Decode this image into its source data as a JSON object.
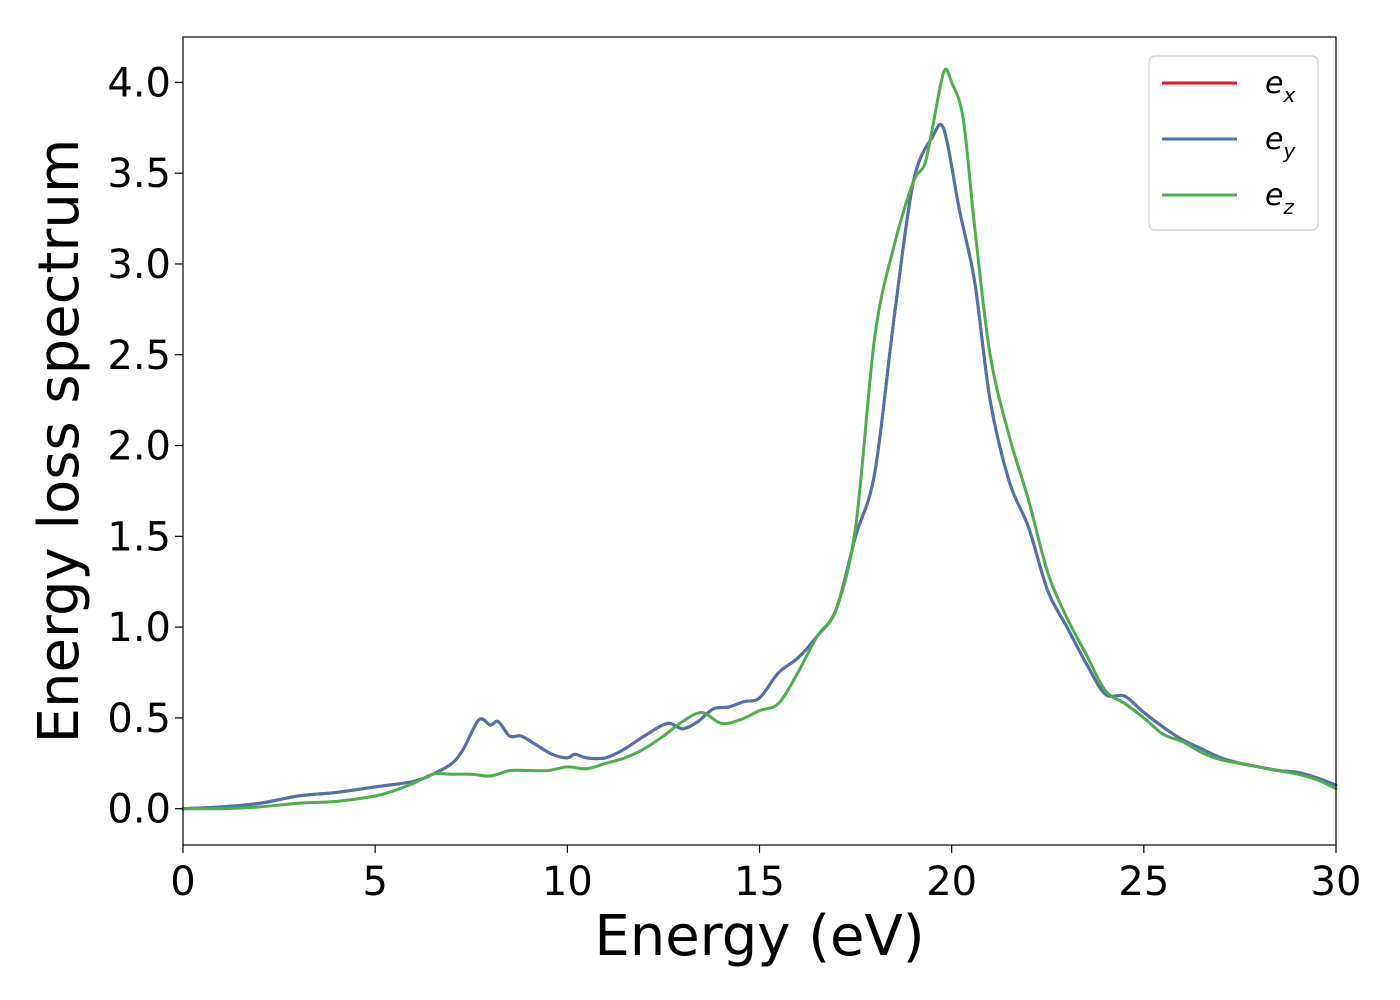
{
  "chart_data": {
    "type": "line",
    "title": "",
    "xlabel": "Energy (eV)",
    "ylabel": "Energy loss spectrum",
    "xlim": [
      0,
      30
    ],
    "ylim": [
      -0.2,
      4.25
    ],
    "xticks": [
      0,
      5,
      10,
      15,
      20,
      25,
      30
    ],
    "xtick_labels": [
      "0",
      "5",
      "10",
      "15",
      "20",
      "25",
      "30"
    ],
    "yticks": [
      0.0,
      0.5,
      1.0,
      1.5,
      2.0,
      2.5,
      3.0,
      3.5,
      4.0
    ],
    "ytick_labels": [
      "0.0",
      "0.5",
      "1.0",
      "1.5",
      "2.0",
      "2.5",
      "3.0",
      "3.5",
      "4.0"
    ],
    "grid": false,
    "legend_position": "top-right",
    "series": [
      {
        "name": "e_x",
        "label_main": "e",
        "label_sub": "x",
        "color": "#e41a1c",
        "x": [
          0,
          1,
          2,
          3,
          4,
          5,
          6,
          6.5,
          7,
          7.3,
          7.7,
          8.0,
          8.2,
          8.5,
          8.8,
          9.2,
          9.6,
          10.0,
          10.2,
          10.5,
          11.0,
          11.5,
          12.0,
          12.6,
          13.0,
          13.4,
          13.8,
          14.2,
          14.6,
          15.0,
          15.5,
          16.0,
          16.5,
          17.0,
          17.5,
          18.0,
          18.5,
          19.0,
          19.5,
          19.8,
          20.2,
          20.6,
          21.0,
          21.5,
          22.0,
          22.5,
          23.0,
          23.5,
          24.0,
          24.5,
          25.0,
          25.5,
          26.0,
          26.5,
          27.0,
          27.5,
          28.0,
          28.5,
          29.0,
          29.5,
          30.0
        ],
        "y": [
          0.0,
          0.01,
          0.03,
          0.07,
          0.09,
          0.12,
          0.15,
          0.19,
          0.25,
          0.33,
          0.49,
          0.46,
          0.48,
          0.4,
          0.4,
          0.35,
          0.3,
          0.28,
          0.3,
          0.28,
          0.28,
          0.33,
          0.4,
          0.47,
          0.44,
          0.48,
          0.55,
          0.56,
          0.59,
          0.61,
          0.75,
          0.83,
          0.95,
          1.1,
          1.5,
          1.85,
          2.7,
          3.45,
          3.7,
          3.74,
          3.3,
          2.9,
          2.25,
          1.8,
          1.55,
          1.2,
          1.0,
          0.8,
          0.63,
          0.62,
          0.53,
          0.45,
          0.38,
          0.33,
          0.28,
          0.25,
          0.23,
          0.21,
          0.2,
          0.17,
          0.13
        ]
      },
      {
        "name": "e_y",
        "label_main": "e",
        "label_sub": "y",
        "color": "#4c72b0",
        "x": [
          0,
          1,
          2,
          3,
          4,
          5,
          6,
          6.5,
          7,
          7.3,
          7.7,
          8.0,
          8.2,
          8.5,
          8.8,
          9.2,
          9.6,
          10.0,
          10.2,
          10.5,
          11.0,
          11.5,
          12.0,
          12.6,
          13.0,
          13.4,
          13.8,
          14.2,
          14.6,
          15.0,
          15.5,
          16.0,
          16.5,
          17.0,
          17.5,
          18.0,
          18.5,
          19.0,
          19.5,
          19.8,
          20.2,
          20.6,
          21.0,
          21.5,
          22.0,
          22.5,
          23.0,
          23.5,
          24.0,
          24.5,
          25.0,
          25.5,
          26.0,
          26.5,
          27.0,
          27.5,
          28.0,
          28.5,
          29.0,
          29.5,
          30.0
        ],
        "y": [
          0.0,
          0.01,
          0.03,
          0.07,
          0.09,
          0.12,
          0.15,
          0.19,
          0.25,
          0.33,
          0.49,
          0.46,
          0.48,
          0.4,
          0.4,
          0.35,
          0.3,
          0.28,
          0.3,
          0.28,
          0.28,
          0.33,
          0.4,
          0.47,
          0.44,
          0.48,
          0.55,
          0.56,
          0.59,
          0.61,
          0.75,
          0.83,
          0.95,
          1.1,
          1.5,
          1.85,
          2.7,
          3.45,
          3.7,
          3.74,
          3.3,
          2.9,
          2.25,
          1.8,
          1.55,
          1.2,
          1.0,
          0.8,
          0.63,
          0.62,
          0.53,
          0.45,
          0.38,
          0.33,
          0.28,
          0.25,
          0.23,
          0.21,
          0.2,
          0.17,
          0.13
        ]
      },
      {
        "name": "e_z",
        "label_main": "e",
        "label_sub": "z",
        "color": "#4daf4a",
        "x": [
          0,
          1,
          2,
          3,
          4,
          5,
          5.5,
          6,
          6.5,
          7,
          7.5,
          8,
          8.5,
          9,
          9.5,
          10,
          10.5,
          11,
          11.5,
          12,
          12.5,
          13,
          13.5,
          14,
          14.5,
          15,
          15.5,
          16,
          16.5,
          17,
          17.5,
          18,
          18.5,
          19,
          19.3,
          19.5,
          19.8,
          20.0,
          20.3,
          20.6,
          21.0,
          21.5,
          22.0,
          22.5,
          23.0,
          23.5,
          24.0,
          24.5,
          25.0,
          25.5,
          26.0,
          26.5,
          27.0,
          27.5,
          28.0,
          28.5,
          29.0,
          29.5,
          30.0
        ],
        "y": [
          0.0,
          0.0,
          0.01,
          0.03,
          0.04,
          0.07,
          0.1,
          0.14,
          0.19,
          0.19,
          0.19,
          0.18,
          0.21,
          0.21,
          0.21,
          0.23,
          0.22,
          0.25,
          0.28,
          0.33,
          0.4,
          0.48,
          0.53,
          0.47,
          0.49,
          0.54,
          0.58,
          0.75,
          0.95,
          1.1,
          1.55,
          2.6,
          3.1,
          3.45,
          3.55,
          3.75,
          4.06,
          4.0,
          3.8,
          3.2,
          2.5,
          2.05,
          1.7,
          1.3,
          1.05,
          0.85,
          0.65,
          0.58,
          0.5,
          0.41,
          0.37,
          0.31,
          0.27,
          0.25,
          0.23,
          0.21,
          0.19,
          0.16,
          0.11
        ]
      }
    ]
  }
}
